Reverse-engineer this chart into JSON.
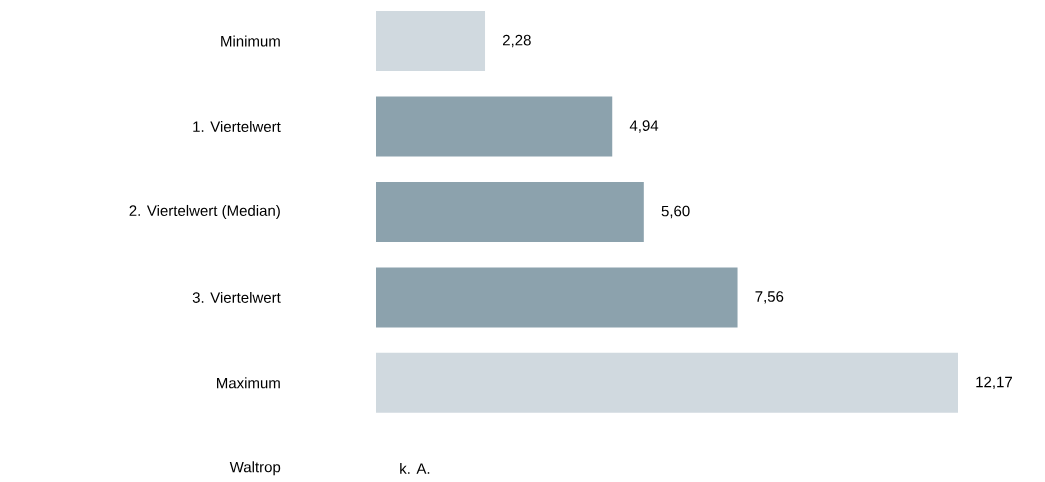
{
  "chart_data": {
    "type": "bar",
    "orientation": "horizontal",
    "categories": [
      "Minimum",
      "1. Viertelwert",
      "2. Viertelwert (Median)",
      "3. Viertelwert",
      "Maximum",
      "Waltrop"
    ],
    "values": [
      2.28,
      4.94,
      5.6,
      7.56,
      12.17,
      null
    ],
    "colors": [
      "#d0d9df",
      "#8ca2ad",
      "#8ca2ad",
      "#8ca2ad",
      "#d0d9df",
      null
    ],
    "value_labels": [
      "2,28",
      "4,94",
      "5,60",
      "7,56",
      "12,17",
      "k. A."
    ]
  }
}
